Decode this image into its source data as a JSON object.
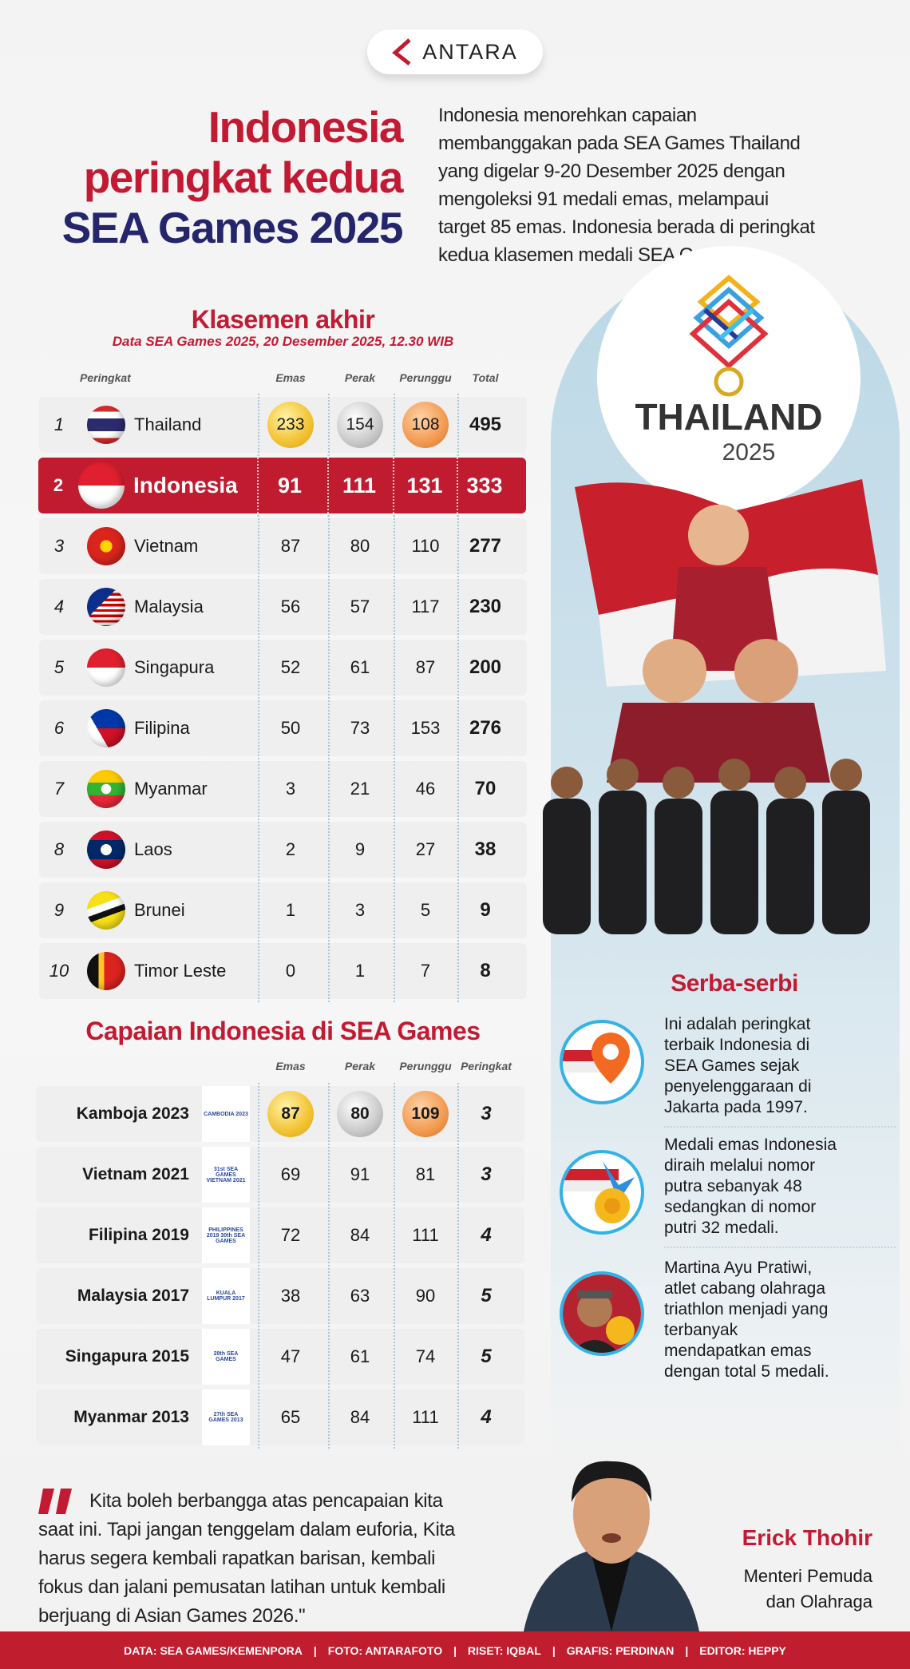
{
  "brand": {
    "name": "ANTARA",
    "accent": "#c21a32",
    "navy": "#25256b"
  },
  "title": {
    "line1": "Indonesia",
    "line2": "peringkat kedua",
    "line3": "SEA Games 2025"
  },
  "intro": {
    "lines": [
      "Indonesia menorehkan capaian",
      "membanggakan pada SEA Games Thailand",
      "yang digelar 9-20 Desember 2025 dengan",
      "mengoleksi 91 medali emas, melampaui",
      "target 85 emas. Indonesia berada di peringkat",
      "kedua klasemen medali SEA Games."
    ]
  },
  "standings": {
    "title": "Klasemen akhir",
    "subtitle": "Data SEA Games 2025, 20 Desember 2025, 12.30 WIB",
    "headers": {
      "rank": "Peringkat",
      "gold": "Emas",
      "silver": "Perak",
      "bronze": "Perunggu",
      "total": "Total"
    },
    "rows": [
      {
        "rank": "1",
        "country": "Thailand",
        "flag": "th",
        "gold": "233",
        "silver": "154",
        "bronze": "108",
        "total": "495"
      },
      {
        "rank": "2",
        "country": "Indonesia",
        "flag": "id",
        "gold": "91",
        "silver": "111",
        "bronze": "131",
        "total": "333",
        "highlight": true
      },
      {
        "rank": "3",
        "country": "Vietnam",
        "flag": "vn",
        "gold": "87",
        "silver": "80",
        "bronze": "110",
        "total": "277"
      },
      {
        "rank": "4",
        "country": "Malaysia",
        "flag": "my",
        "gold": "56",
        "silver": "57",
        "bronze": "117",
        "total": "230"
      },
      {
        "rank": "5",
        "country": "Singapura",
        "flag": "sg",
        "gold": "52",
        "silver": "61",
        "bronze": "87",
        "total": "200"
      },
      {
        "rank": "6",
        "country": "Filipina",
        "flag": "ph",
        "gold": "50",
        "silver": "73",
        "bronze": "153",
        "total": "276"
      },
      {
        "rank": "7",
        "country": "Myanmar",
        "flag": "mm",
        "gold": "3",
        "silver": "21",
        "bronze": "46",
        "total": "70"
      },
      {
        "rank": "8",
        "country": "Laos",
        "flag": "la",
        "gold": "2",
        "silver": "9",
        "bronze": "27",
        "total": "38"
      },
      {
        "rank": "9",
        "country": "Brunei",
        "flag": "bn",
        "gold": "1",
        "silver": "3",
        "bronze": "5",
        "total": "9"
      },
      {
        "rank": "10",
        "country": "Timor Leste",
        "flag": "tl",
        "gold": "0",
        "silver": "1",
        "bronze": "7",
        "total": "8"
      }
    ]
  },
  "history": {
    "title": "Capaian Indonesia di SEA Games",
    "headers": {
      "gold": "Emas",
      "silver": "Perak",
      "bronze": "Perunggu",
      "rank": "Peringkat"
    },
    "rows": [
      {
        "edition": "Kamboja 2023",
        "logo": "CAMBODIA 2023",
        "gold": "87",
        "silver": "80",
        "bronze": "109",
        "rank": "3"
      },
      {
        "edition": "Vietnam 2021",
        "logo": "31st SEA GAMES VIETNAM 2021",
        "gold": "69",
        "silver": "91",
        "bronze": "81",
        "rank": "3"
      },
      {
        "edition": "Filipina 2019",
        "logo": "PHILIPPINES 2019 30th SEA GAMES",
        "gold": "72",
        "silver": "84",
        "bronze": "111",
        "rank": "4"
      },
      {
        "edition": "Malaysia 2017",
        "logo": "KUALA LUMPUR 2017",
        "gold": "38",
        "silver": "63",
        "bronze": "90",
        "rank": "5"
      },
      {
        "edition": "Singapura 2015",
        "logo": "28th SEA GAMES",
        "gold": "47",
        "silver": "61",
        "bronze": "74",
        "rank": "5"
      },
      {
        "edition": "Myanmar 2013",
        "logo": "27th SEA GAMES 2013",
        "gold": "65",
        "silver": "84",
        "bronze": "111",
        "rank": "4"
      }
    ]
  },
  "hero": {
    "logo_text": "THAILAND",
    "logo_year": "2025"
  },
  "facts": {
    "title": "Serba-serbi",
    "items": [
      {
        "icon": "flag-location-pin-icon",
        "lines": [
          "Ini adalah peringkat",
          "terbaik Indonesia di",
          "SEA Games sejak",
          "penyelenggaraan di",
          "Jakarta pada 1997."
        ]
      },
      {
        "icon": "flag-medal-icon",
        "lines": [
          "Medali emas Indonesia",
          "diraih melalui nomor",
          "putra sebanyak 48",
          "sedangkan di nomor",
          "putri 32 medali."
        ]
      },
      {
        "icon": "athlete-medal-icon",
        "lines": [
          "Martina Ayu Pratiwi,",
          "atlet cabang olahraga",
          "triathlon menjadi yang",
          "terbanyak",
          "mendapatkan emas",
          "dengan total 5 medali."
        ]
      }
    ]
  },
  "quote": {
    "lines": [
      "Kita boleh berbangga atas pencapaian kita",
      "saat ini. Tapi jangan tenggelam dalam euforia, Kita",
      "harus segera kembali rapatkan barisan, kembali",
      "fokus dan jalani pemusatan latihan untuk kembali",
      "berjuang di Asian Games 2026.\""
    ],
    "speaker": "Erick Thohir",
    "role_line1": "Menteri Pemuda",
    "role_line2": "dan Olahraga"
  },
  "footer": {
    "credits": [
      "DATA: SEA GAMES/KEMENPORA",
      "FOTO: ANTARAFOTO",
      "RISET: IQBAL",
      "GRAFIS: PERDINAN",
      "EDITOR: HEPPY"
    ]
  }
}
